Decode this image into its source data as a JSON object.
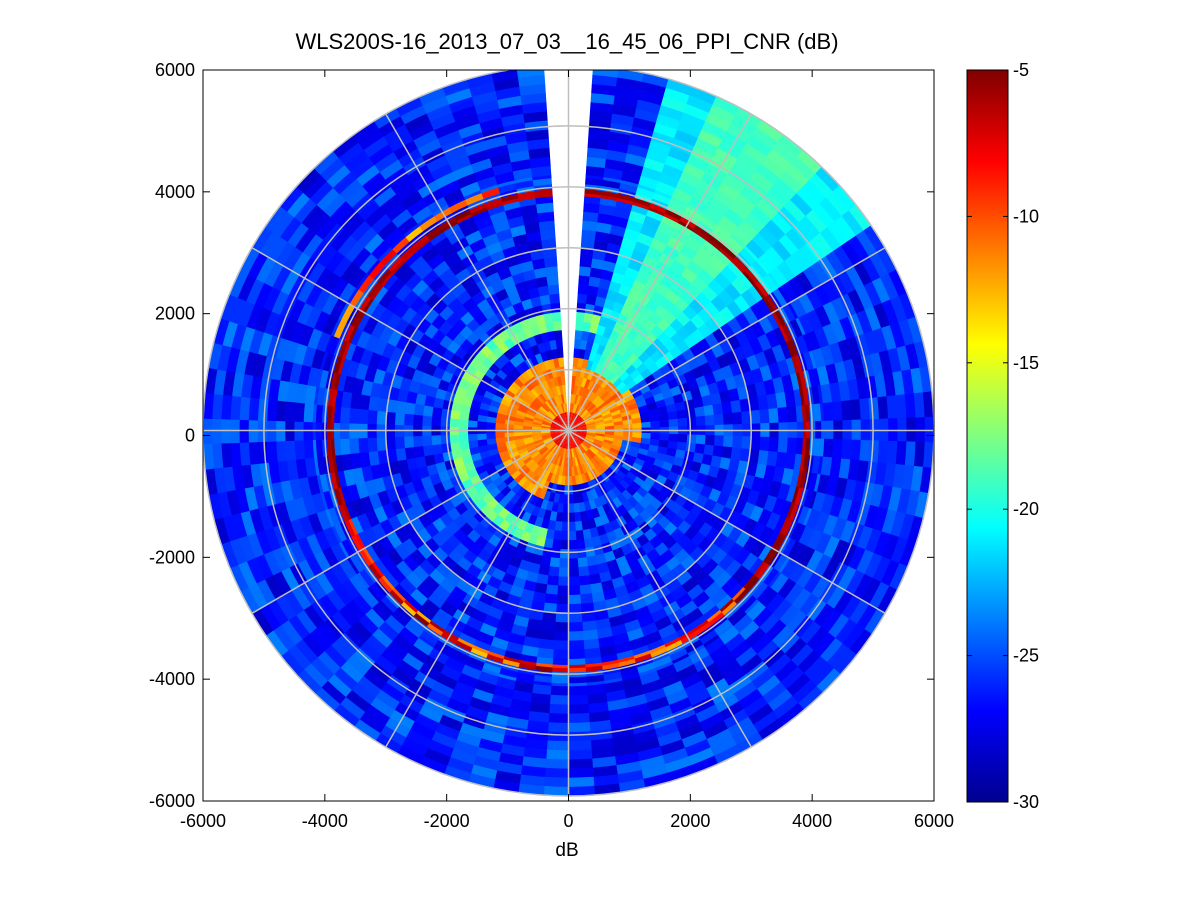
{
  "chart_data": {
    "type": "heatmap",
    "subtype": "polar-ppi",
    "title": "WLS200S-16_2013_07_03__16_45_06_PPI_CNR (dB)",
    "xlabel": "dB",
    "ylabel": "",
    "xlim": [
      -6000,
      6000
    ],
    "ylim": [
      -6000,
      6000
    ],
    "x_ticks": [
      "-6000",
      "-4000",
      "-2000",
      "0",
      "2000",
      "4000",
      "6000"
    ],
    "y_ticks": [
      "6000",
      "4000",
      "2000",
      "0",
      "-2000",
      "-4000",
      "-6000"
    ],
    "max_range": 6000,
    "range_rings": [
      1000,
      2000,
      3000,
      4000,
      5000,
      6000
    ],
    "azimuth_spokes_deg": [
      0,
      30,
      60,
      90,
      120,
      150,
      180,
      210,
      240,
      270,
      300,
      330
    ],
    "colorbar": {
      "range": [
        -30,
        -5
      ],
      "ticks": [
        "-5",
        "-10",
        "-15",
        "-20",
        "-25",
        "-30"
      ],
      "tick_values": [
        -5,
        -10,
        -15,
        -20,
        -25,
        -30
      ],
      "colormap": "jet"
    },
    "gap_sector_deg": [
      -4,
      4
    ],
    "regions": [
      {
        "name": "near-field core",
        "range": [
          0,
          1300
        ],
        "azimuth": "all except blind sector",
        "cnr_db": -12
      },
      {
        "name": "inner ring",
        "range": [
          1650,
          1950
        ],
        "azimuth": "north and west half",
        "cnr_db": -18
      },
      {
        "name": "strong echo ring",
        "range": [
          3850,
          3970
        ],
        "azimuth": "nearly full circle",
        "cnr_db": -6
      },
      {
        "name": "partial outer ring",
        "range": [
          4050,
          4150
        ],
        "azimuth": "north-west arc",
        "cnr_db": -10
      },
      {
        "name": "north-east sector",
        "range": [
          1000,
          6000
        ],
        "azimuth": [
          15,
          55
        ],
        "cnr_db": -19
      },
      {
        "name": "background",
        "range": [
          1300,
          6000
        ],
        "azimuth": "all",
        "cnr_db": -26
      }
    ]
  }
}
